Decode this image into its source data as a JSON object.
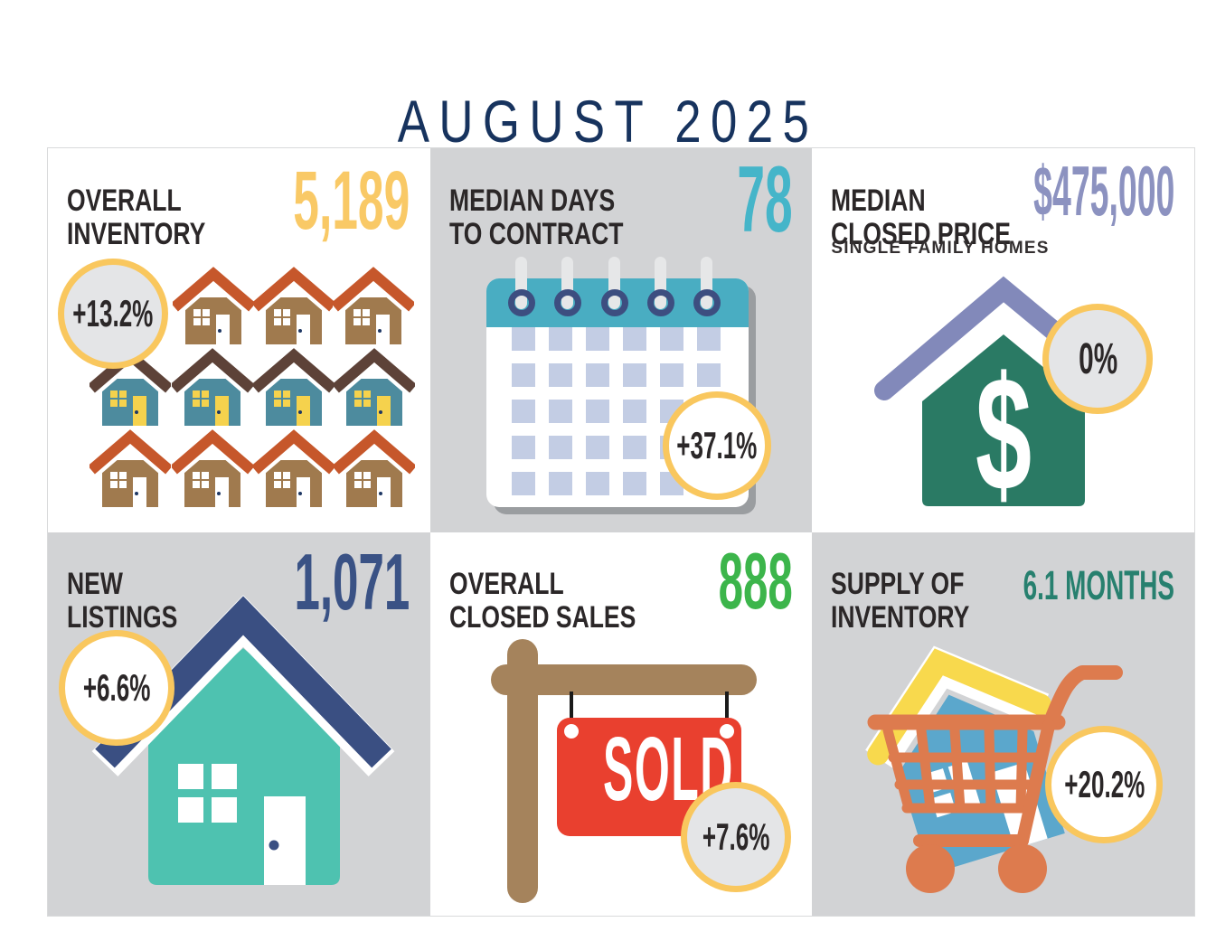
{
  "title": "AUGUST 2025",
  "panels": [
    {
      "name": "overall-inventory",
      "label": [
        "OVERALL",
        "INVENTORY"
      ],
      "value": "5,189",
      "value_color": "#F9C966",
      "change": "+13.2%",
      "icon": "houses-grid-icon"
    },
    {
      "name": "median-days-to-contract",
      "label": [
        "MEDIAN DAYS",
        "TO CONTRACT"
      ],
      "value": "78",
      "value_color": "#45B5C9",
      "change": "+37.1%",
      "icon": "calendar-icon"
    },
    {
      "name": "median-closed-price",
      "label": [
        "MEDIAN",
        "CLOSED PRICE"
      ],
      "subtitle": "SINGLE FAMILY HOMES",
      "value": "$475,000",
      "value_color": "#8C92C0",
      "change": "0%",
      "icon": "house-dollar-icon"
    },
    {
      "name": "new-listings",
      "label": [
        "NEW",
        "LISTINGS"
      ],
      "value": "1,071",
      "value_color": "#3A5285",
      "change": "+6.6%",
      "icon": "house-icon"
    },
    {
      "name": "overall-closed-sales",
      "label": [
        "OVERALL",
        "CLOSED SALES"
      ],
      "value": "888",
      "value_color": "#3CB54B",
      "change": "+7.6%",
      "icon": "sold-sign-icon",
      "sign_text": "SOLD"
    },
    {
      "name": "supply-of-inventory",
      "label": [
        "SUPPLY OF",
        "INVENTORY"
      ],
      "value": "6.1 MONTHS",
      "value_color": "#27806F",
      "change": "+20.2%",
      "icon": "cart-house-icon"
    }
  ],
  "colors": {
    "title": "#17335E",
    "badge_border": "#F9C75E",
    "panel_gray": "#D2D3D5",
    "heading_text": "#2B2728"
  },
  "chart_data": {
    "type": "table",
    "title": "AUGUST 2025",
    "columns": [
      "Metric",
      "Value",
      "Change"
    ],
    "rows": [
      [
        "Overall Inventory",
        "5,189",
        "+13.2%"
      ],
      [
        "Median Days to Contract",
        "78",
        "+37.1%"
      ],
      [
        "Median Closed Price (Single Family Homes)",
        "$475,000",
        "0%"
      ],
      [
        "New Listings",
        "1,071",
        "+6.6%"
      ],
      [
        "Overall Closed Sales",
        "888",
        "+7.6%"
      ],
      [
        "Supply of Inventory",
        "6.1 Months",
        "+20.2%"
      ]
    ]
  }
}
